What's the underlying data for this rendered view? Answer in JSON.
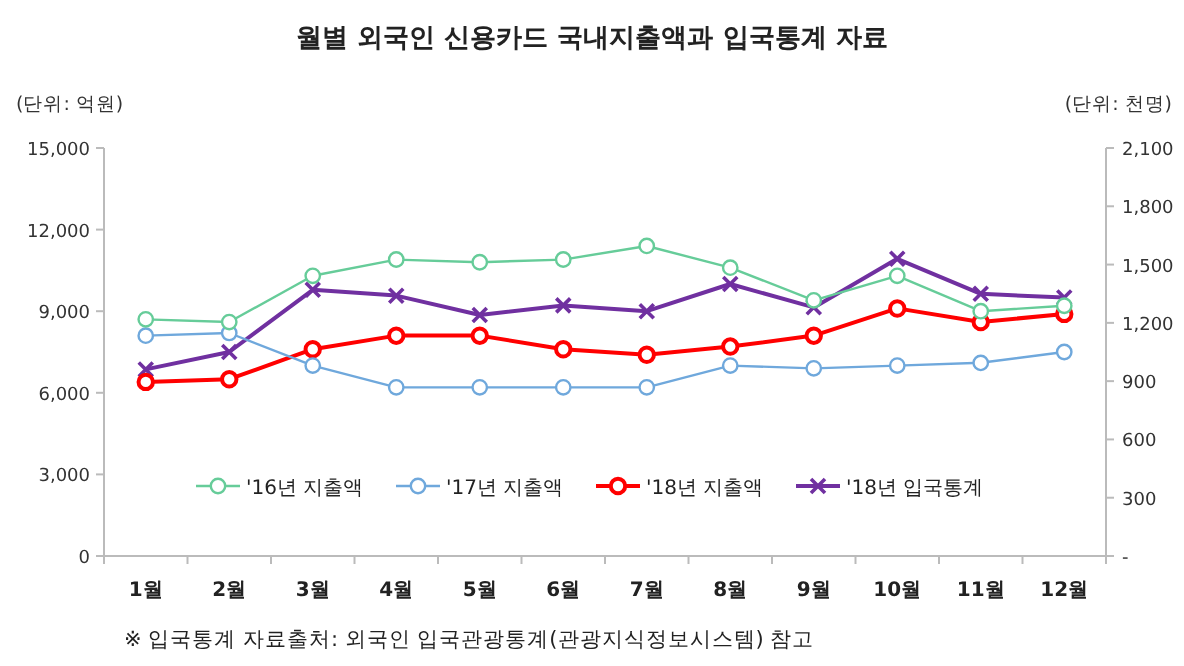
{
  "chart_data": {
    "type": "line",
    "title": "월별 외국인 신용카드 국내지출액과 입국통계 자료",
    "ylabel": "(단위: 억원)",
    "y2label": "(단위: 천명)",
    "categories": [
      "1월",
      "2월",
      "3월",
      "4월",
      "5월",
      "6월",
      "7월",
      "8월",
      "9월",
      "10월",
      "11월",
      "12월"
    ],
    "series": [
      {
        "name": "'16년 지출액",
        "color": "#66cc99",
        "marker": "circle",
        "values": [
          8700,
          8600,
          10300,
          10900,
          10800,
          10900,
          11400,
          10600,
          9400,
          10300,
          9000,
          9200
        ]
      },
      {
        "name": "'17년 지출액",
        "color": "#6fa8dc",
        "marker": "circle",
        "values": [
          8100,
          8200,
          7000,
          6200,
          6200,
          6200,
          6200,
          7000,
          6900,
          7000,
          7100,
          7500
        ]
      },
      {
        "name": "'18년 지출액",
        "color": "#ff0000",
        "marker": "circle",
        "values": [
          6400,
          6500,
          7600,
          8100,
          8100,
          7600,
          7400,
          7700,
          8100,
          9100,
          8600,
          8900
        ]
      },
      {
        "name": "'18년 입국통계",
        "color": "#7030a0",
        "marker": "cross",
        "axis": "y2",
        "values": [
          960,
          1050,
          1370,
          1340,
          1240,
          1290,
          1260,
          1400,
          1280,
          1530,
          1350,
          1330
        ]
      }
    ],
    "ylim": [
      0,
      15000
    ],
    "yticks": [
      {
        "value": 0,
        "label": "0"
      },
      {
        "value": 3000,
        "label": "3,000"
      },
      {
        "value": 6000,
        "label": "6,000"
      },
      {
        "value": 9000,
        "label": "9,000"
      },
      {
        "value": 12000,
        "label": "12,000"
      },
      {
        "value": 15000,
        "label": "15,000"
      }
    ],
    "y2lim": [
      0,
      2100
    ],
    "y2ticks": [
      {
        "value": 0,
        "label": "-"
      },
      300,
      600,
      900,
      {
        "value": 1200,
        "label": "1,200"
      },
      {
        "value": 1500,
        "label": "1,500"
      },
      {
        "value": 1800,
        "label": "1,800"
      },
      {
        "value": 2100,
        "label": "2,100"
      }
    ],
    "legend": "bottom",
    "annotations": [
      "※ 입국통계 자료출처: 외국인 입국관광통계(관광지식정보시스템) 참고"
    ]
  }
}
